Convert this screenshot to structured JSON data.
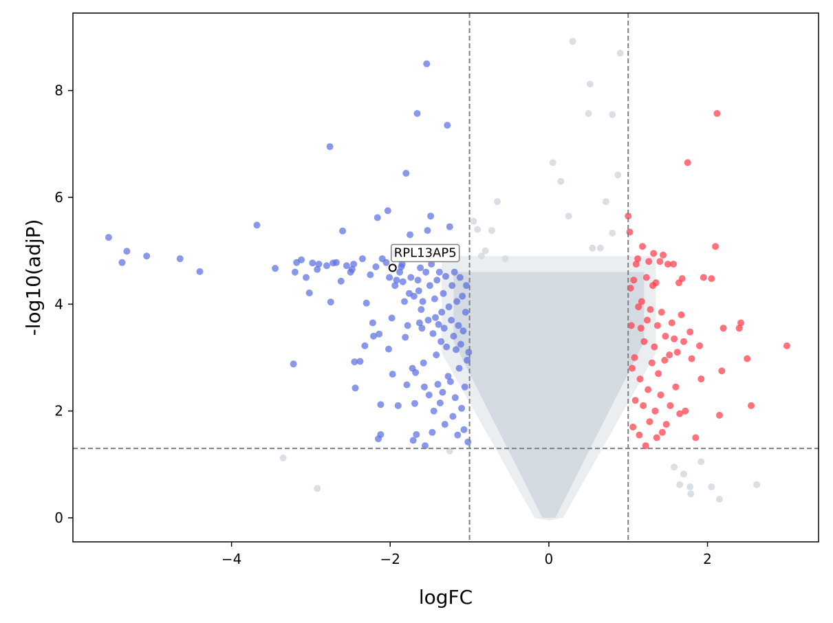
{
  "chart_data": {
    "type": "scatter",
    "title": "",
    "xlabel": "logFC",
    "ylabel": "-log10(adjP)",
    "xlim": [
      -6.0,
      3.4
    ],
    "ylim": [
      -0.45,
      9.45
    ],
    "xticks": [
      -4,
      -2,
      0,
      2
    ],
    "yticks": [
      0,
      2,
      4,
      6,
      8
    ],
    "xtick_labels": [
      "−4",
      "−2",
      "0",
      "2"
    ],
    "ytick_labels": [
      "0",
      "2",
      "4",
      "6",
      "8"
    ],
    "grid": false,
    "legend": "none",
    "thresholds": {
      "logFC": [
        -1,
        1
      ],
      "neg_log10_p": 1.3
    },
    "colors": {
      "down": "#5a6fe0",
      "up": "#ff3a48",
      "ns": "#d2d9e0",
      "threshold_line": "#7f7f7f"
    },
    "annotation": {
      "label": "RPL13AP5",
      "x": -1.97,
      "y": 4.68
    },
    "series": [
      {
        "name": "down",
        "points": [
          [
            -5.55,
            5.25
          ],
          [
            -5.38,
            4.78
          ],
          [
            -5.32,
            4.99
          ],
          [
            -5.07,
            4.9
          ],
          [
            -4.65,
            4.85
          ],
          [
            -4.4,
            4.61
          ],
          [
            -3.68,
            5.48
          ],
          [
            -3.45,
            4.67
          ],
          [
            -3.22,
            2.88
          ],
          [
            -3.2,
            4.6
          ],
          [
            -3.18,
            4.78
          ],
          [
            -3.12,
            4.83
          ],
          [
            -3.06,
            4.5
          ],
          [
            -3.02,
            4.21
          ],
          [
            -2.98,
            4.77
          ],
          [
            -2.92,
            4.65
          ],
          [
            -2.9,
            4.75
          ],
          [
            -2.8,
            4.72
          ],
          [
            -2.76,
            6.95
          ],
          [
            -2.75,
            4.04
          ],
          [
            -2.72,
            4.77
          ],
          [
            -2.68,
            4.78
          ],
          [
            -2.62,
            4.43
          ],
          [
            -2.6,
            5.37
          ],
          [
            -2.55,
            4.72
          ],
          [
            -2.5,
            4.6
          ],
          [
            -2.48,
            4.65
          ],
          [
            -2.46,
            4.75
          ],
          [
            -2.45,
            2.92
          ],
          [
            -2.44,
            2.43
          ],
          [
            -2.38,
            2.93
          ],
          [
            -2.35,
            4.85
          ],
          [
            -2.32,
            3.22
          ],
          [
            -2.3,
            4.02
          ],
          [
            -2.25,
            4.55
          ],
          [
            -2.22,
            3.65
          ],
          [
            -2.21,
            3.4
          ],
          [
            -2.18,
            4.7
          ],
          [
            -2.16,
            5.62
          ],
          [
            -2.15,
            1.48
          ],
          [
            -2.14,
            3.44
          ],
          [
            -2.12,
            2.12
          ],
          [
            -2.12,
            1.56
          ],
          [
            -2.1,
            4.85
          ],
          [
            -2.05,
            4.78
          ],
          [
            -2.03,
            5.75
          ],
          [
            -2.02,
            3.16
          ],
          [
            -2.01,
            4.5
          ],
          [
            -1.98,
            3.74
          ],
          [
            -1.97,
            2.69
          ],
          [
            -1.95,
            4.95
          ],
          [
            -1.94,
            4.35
          ],
          [
            -1.92,
            4.45
          ],
          [
            -1.9,
            2.1
          ],
          [
            -1.88,
            4.6
          ],
          [
            -1.86,
            4.7
          ],
          [
            -1.85,
            4.75
          ],
          [
            -1.84,
            4.42
          ],
          [
            -1.82,
            4.05
          ],
          [
            -1.81,
            3.38
          ],
          [
            -1.8,
            6.45
          ],
          [
            -1.79,
            2.49
          ],
          [
            -1.78,
            3.6
          ],
          [
            -1.76,
            4.2
          ],
          [
            -1.75,
            5.3
          ],
          [
            -1.74,
            4.5
          ],
          [
            -1.72,
            2.8
          ],
          [
            -1.71,
            1.45
          ],
          [
            -1.7,
            4.15
          ],
          [
            -1.69,
            2.14
          ],
          [
            -1.68,
            2.72
          ],
          [
            -1.67,
            1.56
          ],
          [
            -1.66,
            7.57
          ],
          [
            -1.65,
            4.45
          ],
          [
            -1.64,
            4.25
          ],
          [
            -1.63,
            3.65
          ],
          [
            -1.62,
            4.68
          ],
          [
            -1.61,
            3.9
          ],
          [
            -1.6,
            3.55
          ],
          [
            -1.59,
            4.05
          ],
          [
            -1.58,
            2.9
          ],
          [
            -1.57,
            2.45
          ],
          [
            -1.56,
            1.35
          ],
          [
            -1.55,
            4.6
          ],
          [
            -1.54,
            8.5
          ],
          [
            -1.53,
            5.38
          ],
          [
            -1.52,
            3.7
          ],
          [
            -1.51,
            2.3
          ],
          [
            -1.5,
            4.35
          ],
          [
            -1.49,
            5.65
          ],
          [
            -1.48,
            4.75
          ],
          [
            -1.47,
            1.6
          ],
          [
            -1.46,
            3.45
          ],
          [
            -1.45,
            2.0
          ],
          [
            -1.44,
            4.1
          ],
          [
            -1.43,
            3.75
          ],
          [
            -1.42,
            3.05
          ],
          [
            -1.41,
            4.45
          ],
          [
            -1.4,
            2.5
          ],
          [
            -1.39,
            3.62
          ],
          [
            -1.38,
            4.6
          ],
          [
            -1.37,
            2.15
          ],
          [
            -1.36,
            3.3
          ],
          [
            -1.35,
            3.85
          ],
          [
            -1.34,
            2.35
          ],
          [
            -1.33,
            4.2
          ],
          [
            -1.32,
            3.55
          ],
          [
            -1.31,
            1.75
          ],
          [
            -1.3,
            4.52
          ],
          [
            -1.29,
            3.2
          ],
          [
            -1.28,
            7.35
          ],
          [
            -1.27,
            2.65
          ],
          [
            -1.26,
            3.95
          ],
          [
            -1.25,
            5.45
          ],
          [
            -1.24,
            2.55
          ],
          [
            -1.23,
            3.7
          ],
          [
            -1.22,
            4.35
          ],
          [
            -1.21,
            1.9
          ],
          [
            -1.2,
            3.4
          ],
          [
            -1.19,
            4.6
          ],
          [
            -1.18,
            2.25
          ],
          [
            -1.17,
            3.15
          ],
          [
            -1.16,
            4.05
          ],
          [
            -1.15,
            1.55
          ],
          [
            -1.14,
            3.6
          ],
          [
            -1.13,
            2.8
          ],
          [
            -1.12,
            4.5
          ],
          [
            -1.11,
            3.25
          ],
          [
            -1.1,
            2.05
          ],
          [
            -1.09,
            4.15
          ],
          [
            -1.08,
            3.5
          ],
          [
            -1.07,
            1.65
          ],
          [
            -1.06,
            2.45
          ],
          [
            -1.05,
            3.85
          ],
          [
            -1.04,
            4.35
          ],
          [
            -1.03,
            2.95
          ],
          [
            -1.02,
            1.42
          ],
          [
            -1.01,
            3.1
          ]
        ]
      },
      {
        "name": "up",
        "points": [
          [
            1.0,
            5.65
          ],
          [
            1.02,
            5.35
          ],
          [
            1.03,
            4.3
          ],
          [
            1.04,
            3.6
          ],
          [
            1.05,
            2.8
          ],
          [
            1.06,
            1.7
          ],
          [
            1.07,
            4.45
          ],
          [
            1.08,
            3.0
          ],
          [
            1.09,
            2.2
          ],
          [
            1.1,
            4.75
          ],
          [
            1.12,
            4.85
          ],
          [
            1.13,
            3.95
          ],
          [
            1.14,
            1.55
          ],
          [
            1.15,
            2.6
          ],
          [
            1.16,
            3.55
          ],
          [
            1.17,
            4.05
          ],
          [
            1.18,
            5.08
          ],
          [
            1.19,
            2.1
          ],
          [
            1.2,
            3.3
          ],
          [
            1.22,
            1.35
          ],
          [
            1.23,
            4.5
          ],
          [
            1.24,
            3.7
          ],
          [
            1.25,
            2.4
          ],
          [
            1.26,
            4.8
          ],
          [
            1.27,
            1.8
          ],
          [
            1.28,
            3.9
          ],
          [
            1.3,
            2.9
          ],
          [
            1.31,
            4.35
          ],
          [
            1.32,
            4.95
          ],
          [
            1.33,
            3.2
          ],
          [
            1.34,
            2.0
          ],
          [
            1.35,
            4.4
          ],
          [
            1.36,
            1.5
          ],
          [
            1.37,
            3.6
          ],
          [
            1.38,
            2.7
          ],
          [
            1.4,
            4.8
          ],
          [
            1.41,
            2.3
          ],
          [
            1.42,
            3.85
          ],
          [
            1.43,
            1.6
          ],
          [
            1.44,
            4.92
          ],
          [
            1.46,
            2.95
          ],
          [
            1.47,
            3.4
          ],
          [
            1.48,
            1.75
          ],
          [
            1.5,
            4.75
          ],
          [
            1.52,
            3.05
          ],
          [
            1.53,
            2.1
          ],
          [
            1.55,
            3.65
          ],
          [
            1.57,
            4.75
          ],
          [
            1.58,
            3.35
          ],
          [
            1.6,
            2.45
          ],
          [
            1.62,
            3.1
          ],
          [
            1.64,
            4.4
          ],
          [
            1.65,
            1.95
          ],
          [
            1.67,
            3.8
          ],
          [
            1.68,
            4.48
          ],
          [
            1.7,
            3.3
          ],
          [
            1.72,
            2.0
          ],
          [
            1.75,
            6.65
          ],
          [
            1.78,
            3.48
          ],
          [
            1.8,
            2.98
          ],
          [
            1.85,
            1.5
          ],
          [
            1.9,
            3.22
          ],
          [
            1.92,
            2.6
          ],
          [
            1.95,
            4.5
          ],
          [
            2.05,
            4.48
          ],
          [
            2.1,
            5.08
          ],
          [
            2.12,
            7.57
          ],
          [
            2.15,
            1.92
          ],
          [
            2.18,
            2.75
          ],
          [
            2.2,
            3.55
          ],
          [
            2.4,
            3.55
          ],
          [
            2.42,
            3.65
          ],
          [
            2.5,
            2.98
          ],
          [
            2.55,
            2.1
          ],
          [
            3.0,
            3.22
          ]
        ]
      },
      {
        "name": "ns",
        "points": [
          [
            -3.35,
            1.12
          ],
          [
            -2.92,
            0.55
          ],
          [
            -1.25,
            1.25
          ],
          [
            -0.95,
            5.55
          ],
          [
            -0.9,
            5.4
          ],
          [
            -0.85,
            4.9
          ],
          [
            -0.8,
            5.0
          ],
          [
            -0.72,
            5.38
          ],
          [
            -0.65,
            5.92
          ],
          [
            -0.55,
            4.85
          ],
          [
            0.05,
            6.65
          ],
          [
            0.15,
            6.3
          ],
          [
            0.25,
            5.65
          ],
          [
            0.3,
            8.92
          ],
          [
            0.5,
            7.57
          ],
          [
            0.52,
            8.12
          ],
          [
            0.55,
            5.05
          ],
          [
            0.65,
            5.05
          ],
          [
            0.72,
            5.92
          ],
          [
            0.8,
            5.33
          ],
          [
            0.8,
            7.55
          ],
          [
            0.87,
            6.42
          ],
          [
            0.9,
            8.7
          ],
          [
            1.58,
            0.95
          ],
          [
            1.65,
            0.62
          ],
          [
            1.7,
            0.82
          ],
          [
            1.78,
            0.58
          ],
          [
            1.79,
            0.45
          ],
          [
            1.92,
            1.05
          ],
          [
            2.05,
            0.58
          ],
          [
            2.15,
            0.35
          ],
          [
            2.62,
            0.62
          ]
        ]
      }
    ]
  }
}
